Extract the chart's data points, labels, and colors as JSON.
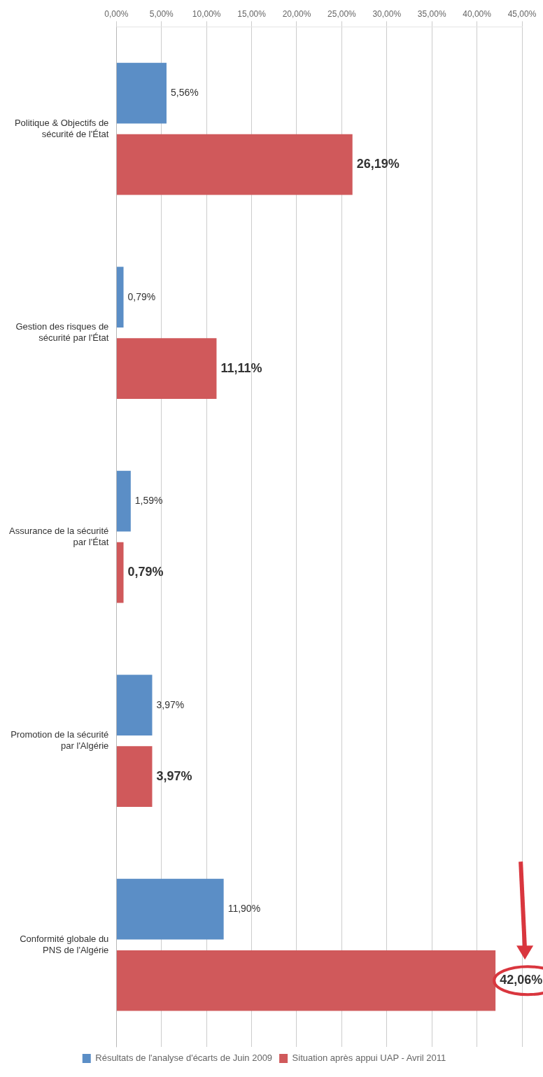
{
  "chart_data": {
    "type": "bar",
    "orientation": "horizontal",
    "categories": [
      "Politique & Objectifs de sécurité de l'État",
      "Gestion des risques de sécurité par l'État",
      "Assurance de la sécurité par l'État",
      "Promotion de la sécurité par l'Algérie",
      "Conformité globale du PNS de l'Algérie"
    ],
    "series": [
      {
        "name": "Résultats de l'analyse d'écarts de Juin 2009",
        "color": "#5b8ec6",
        "values": [
          5.56,
          0.79,
          1.59,
          3.97,
          11.9
        ],
        "value_labels": [
          "5,56%",
          "0,79%",
          "1,59%",
          "3,97%",
          "11,90%"
        ]
      },
      {
        "name": "Situation après appui UAP - Avril 2011",
        "color": "#d0595b",
        "values": [
          26.19,
          11.11,
          0.79,
          3.97,
          42.06
        ],
        "value_labels": [
          "26,19%",
          "11,11%",
          "0,79%",
          "3,97%",
          "42,06%"
        ]
      }
    ],
    "xlim": [
      0,
      45
    ],
    "xticks": [
      {
        "value": 0,
        "label": "0,00%"
      },
      {
        "value": 5,
        "label": "5,00%"
      },
      {
        "value": 10,
        "label": "10,00%"
      },
      {
        "value": 15,
        "label": "15,00%"
      },
      {
        "value": 20,
        "label": "20,00%"
      },
      {
        "value": 25,
        "label": "25,00%"
      },
      {
        "value": 30,
        "label": "30,00%"
      },
      {
        "value": 35,
        "label": "35,00%"
      },
      {
        "value": 40,
        "label": "40,00%"
      },
      {
        "value": 45,
        "label": "45,00%"
      }
    ],
    "grid": "x",
    "legend": "bottom"
  }
}
